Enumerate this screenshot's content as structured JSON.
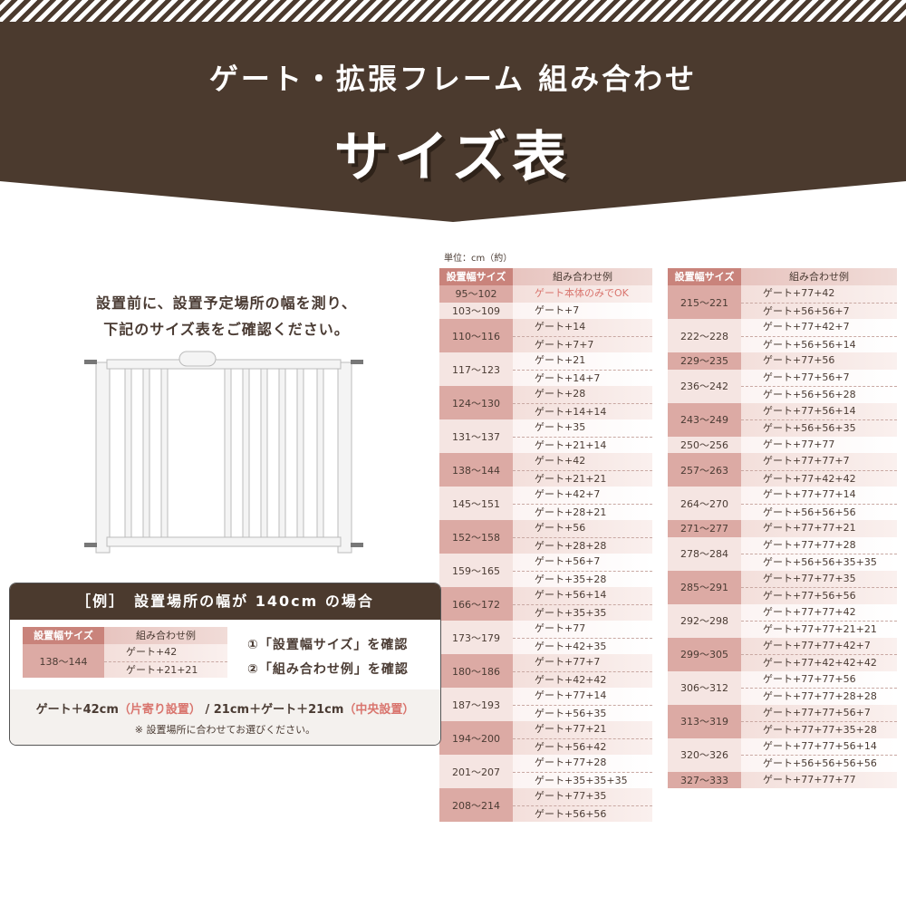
{
  "header": {
    "title": "ゲート・拡張フレーム 組み合わせ",
    "subtitle": "サイズ表",
    "bg_color": "#4b3a2e"
  },
  "intro": {
    "line1": "設置前に、設置予定場所の幅を測り、",
    "line2": "下記のサイズ表をご確認ください。"
  },
  "unit": "単位：cm（約）",
  "table_headers": {
    "size": "設置幅サイズ",
    "combo": "組み合わせ例"
  },
  "left_table": [
    {
      "size": "95〜102",
      "combos": [
        "ゲート本体のみでOK"
      ]
    },
    {
      "size": "103〜109",
      "combos": [
        "ゲート+7"
      ]
    },
    {
      "size": "110〜116",
      "combos": [
        "ゲート+14",
        "ゲート+7+7"
      ]
    },
    {
      "size": "117〜123",
      "combos": [
        "ゲート+21",
        "ゲート+14+7"
      ]
    },
    {
      "size": "124〜130",
      "combos": [
        "ゲート+28",
        "ゲート+14+14"
      ]
    },
    {
      "size": "131〜137",
      "combos": [
        "ゲート+35",
        "ゲート+21+14"
      ]
    },
    {
      "size": "138〜144",
      "combos": [
        "ゲート+42",
        "ゲート+21+21"
      ]
    },
    {
      "size": "145〜151",
      "combos": [
        "ゲート+42+7",
        "ゲート+28+21"
      ]
    },
    {
      "size": "152〜158",
      "combos": [
        "ゲート+56",
        "ゲート+28+28"
      ]
    },
    {
      "size": "159〜165",
      "combos": [
        "ゲート+56+7",
        "ゲート+35+28"
      ]
    },
    {
      "size": "166〜172",
      "combos": [
        "ゲート+56+14",
        "ゲート+35+35"
      ]
    },
    {
      "size": "173〜179",
      "combos": [
        "ゲート+77",
        "ゲート+42+35"
      ]
    },
    {
      "size": "180〜186",
      "combos": [
        "ゲート+77+7",
        "ゲート+42+42"
      ]
    },
    {
      "size": "187〜193",
      "combos": [
        "ゲート+77+14",
        "ゲート+56+35"
      ]
    },
    {
      "size": "194〜200",
      "combos": [
        "ゲート+77+21",
        "ゲート+56+42"
      ]
    },
    {
      "size": "201〜207",
      "combos": [
        "ゲート+77+28",
        "ゲート+35+35+35"
      ]
    },
    {
      "size": "208〜214",
      "combos": [
        "ゲート+77+35",
        "ゲート+56+56"
      ]
    }
  ],
  "right_table": [
    {
      "size": "215〜221",
      "combos": [
        "ゲート+77+42",
        "ゲート+56+56+7"
      ]
    },
    {
      "size": "222〜228",
      "combos": [
        "ゲート+77+42+7",
        "ゲート+56+56+14"
      ]
    },
    {
      "size": "229〜235",
      "combos": [
        "ゲート+77+56"
      ]
    },
    {
      "size": "236〜242",
      "combos": [
        "ゲート+77+56+7",
        "ゲート+56+56+28"
      ]
    },
    {
      "size": "243〜249",
      "combos": [
        "ゲート+77+56+14",
        "ゲート+56+56+35"
      ]
    },
    {
      "size": "250〜256",
      "combos": [
        "ゲート+77+77"
      ]
    },
    {
      "size": "257〜263",
      "combos": [
        "ゲート+77+77+7",
        "ゲート+77+42+42"
      ]
    },
    {
      "size": "264〜270",
      "combos": [
        "ゲート+77+77+14",
        "ゲート+56+56+56"
      ]
    },
    {
      "size": "271〜277",
      "combos": [
        "ゲート+77+77+21"
      ]
    },
    {
      "size": "278〜284",
      "combos": [
        "ゲート+77+77+28",
        "ゲート+56+56+35+35"
      ]
    },
    {
      "size": "285〜291",
      "combos": [
        "ゲート+77+77+35",
        "ゲート+77+56+56"
      ]
    },
    {
      "size": "292〜298",
      "combos": [
        "ゲート+77+77+42",
        "ゲート+77+77+21+21"
      ]
    },
    {
      "size": "299〜305",
      "combos": [
        "ゲート+77+77+42+7",
        "ゲート+77+42+42+42"
      ]
    },
    {
      "size": "306〜312",
      "combos": [
        "ゲート+77+77+56",
        "ゲート+77+77+28+28"
      ]
    },
    {
      "size": "313〜319",
      "combos": [
        "ゲート+77+77+56+7",
        "ゲート+77+77+35+28"
      ]
    },
    {
      "size": "320〜326",
      "combos": [
        "ゲート+77+77+56+14",
        "ゲート+56+56+56+56"
      ]
    },
    {
      "size": "327〜333",
      "combos": [
        "ゲート+77+77+77"
      ]
    }
  ],
  "example": {
    "title": "［例］　設置場所の幅が 140cm の場合",
    "size": "138〜144",
    "combos": [
      "ゲート+42",
      "ゲート+21+21"
    ],
    "step1": "①「設置幅サイズ」を確認",
    "step2": "②「組み合わせ例」を確認",
    "result_a": "ゲート＋42cm",
    "result_a_note": "（片寄り設置）",
    "sep": " / ",
    "result_b": "21cm＋ゲート＋21cm",
    "result_b_note": "（中央設置）",
    "note": "※ 設置場所に合わせてお選びください。"
  },
  "colors": {
    "accent": "#d9756e",
    "header_cell": "#c9837b"
  }
}
